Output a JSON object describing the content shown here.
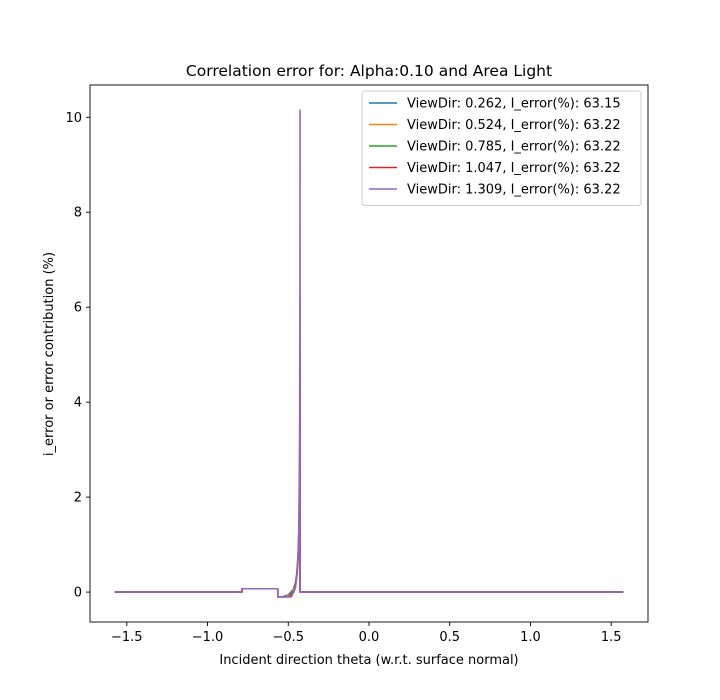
{
  "chart_data": {
    "type": "line",
    "title": "Correlation error for: Alpha:0.10 and Area Light",
    "xlabel": "Incident direction theta (w.r.t. surface normal)",
    "ylabel": "i_error or error contribution (%)",
    "xlim": [
      -1.728,
      1.728
    ],
    "ylim": [
      -0.63,
      10.68
    ],
    "xticks": [
      -1.5,
      -1.0,
      -0.5,
      0.0,
      0.5,
      1.0,
      1.5
    ],
    "xtick_labels": [
      "−1.5",
      "−1.0",
      "−0.5",
      "0.0",
      "0.5",
      "1.0",
      "1.5"
    ],
    "yticks": [
      0,
      2,
      4,
      6,
      8,
      10
    ],
    "ytick_labels": [
      "0",
      "2",
      "4",
      "6",
      "8",
      "10"
    ],
    "grid": false,
    "legend_position": "upper right",
    "series": [
      {
        "name": "ViewDir: 0.262, I_error(%): 63.15",
        "color": "#1f77b4",
        "x": [
          -1.571,
          -0.786,
          -0.786,
          -0.565,
          -0.565,
          -0.54,
          -0.5,
          -0.47,
          -0.455,
          -0.445,
          -0.437,
          -0.432,
          -0.429,
          -0.427,
          -0.427,
          1.571
        ],
        "y": [
          0.0,
          0.0,
          0.07,
          0.07,
          -0.1,
          -0.1,
          -0.06,
          0.05,
          0.2,
          0.45,
          0.9,
          1.5,
          2.1,
          2.6,
          0.0,
          0.0
        ]
      },
      {
        "name": "ViewDir: 0.524, I_error(%): 63.22",
        "color": "#ff7f0e",
        "x": [
          -1.571,
          -0.786,
          -0.786,
          -0.565,
          -0.565,
          -0.52,
          -0.48,
          -0.46,
          -0.448,
          -0.44,
          -0.434,
          -0.43,
          -0.428,
          -0.427,
          -0.427,
          1.571
        ],
        "y": [
          0.0,
          0.0,
          0.07,
          0.07,
          -0.1,
          -0.1,
          -0.04,
          0.1,
          0.35,
          0.75,
          1.4,
          2.4,
          4.0,
          6.2,
          0.0,
          0.0
        ]
      },
      {
        "name": "ViewDir: 0.785, I_error(%): 63.22",
        "color": "#2ca02c",
        "x": [
          -1.571,
          -0.786,
          -0.786,
          -0.565,
          -0.565,
          -0.5,
          -0.465,
          -0.45,
          -0.44,
          -0.434,
          -0.43,
          -0.428,
          -0.427,
          -0.427,
          1.571
        ],
        "y": [
          0.0,
          0.0,
          0.07,
          0.07,
          -0.1,
          -0.1,
          0.0,
          0.25,
          0.6,
          1.2,
          2.2,
          3.6,
          5.0,
          0.0,
          0.0
        ]
      },
      {
        "name": "ViewDir: 1.047, I_error(%): 63.22",
        "color": "#d62728",
        "x": [
          -1.571,
          -0.786,
          -0.786,
          -0.565,
          -0.565,
          -0.49,
          -0.46,
          -0.447,
          -0.438,
          -0.432,
          -0.429,
          -0.427,
          -0.427,
          1.571
        ],
        "y": [
          0.0,
          0.0,
          0.07,
          0.07,
          -0.1,
          -0.1,
          0.05,
          0.35,
          0.8,
          1.6,
          2.8,
          4.5,
          0.0,
          0.0
        ]
      },
      {
        "name": "ViewDir: 1.309, I_error(%): 63.22",
        "color": "#9467bd",
        "x": [
          -1.571,
          -0.786,
          -0.786,
          -0.565,
          -0.565,
          -0.48,
          -0.455,
          -0.442,
          -0.435,
          -0.43,
          -0.428,
          -0.427,
          -0.427,
          1.571
        ],
        "y": [
          0.0,
          0.0,
          0.07,
          0.07,
          -0.1,
          -0.1,
          0.1,
          0.5,
          1.2,
          3.0,
          6.0,
          10.15,
          0.0,
          0.0
        ]
      }
    ]
  }
}
